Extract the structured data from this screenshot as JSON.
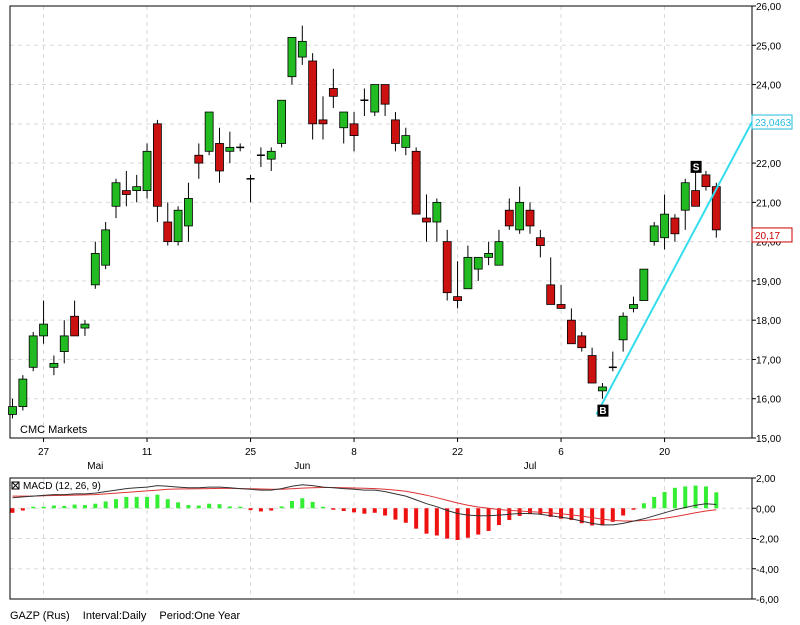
{
  "chart_data": [
    {
      "type": "candlestick",
      "watermark": "CMC Markets",
      "ylim": [
        15,
        26
      ],
      "y_ticks": [
        "15,00",
        "16,00",
        "17,00",
        "18,00",
        "19,00",
        "20,00",
        "21,00",
        "22,00",
        "23,00",
        "24,00",
        "25,00",
        "26,00"
      ],
      "x_ticks": [
        {
          "label": "27",
          "i": 3
        },
        {
          "label": "11",
          "i": 13
        },
        {
          "label": "25",
          "i": 23
        },
        {
          "label": "8",
          "i": 33
        },
        {
          "label": "22",
          "i": 43
        },
        {
          "label": "6",
          "i": 53
        },
        {
          "label": "20",
          "i": 63
        }
      ],
      "month_labels": [
        {
          "label": "Mai",
          "i": 8
        },
        {
          "label": "Jun",
          "i": 28
        },
        {
          "label": "Jul",
          "i": 50
        }
      ],
      "candles": [
        [
          15.6,
          16.0,
          15.5,
          15.8
        ],
        [
          15.8,
          16.6,
          15.7,
          16.5
        ],
        [
          16.8,
          17.7,
          16.7,
          17.6
        ],
        [
          17.6,
          18.5,
          17.4,
          17.9
        ],
        [
          16.8,
          17.1,
          16.6,
          16.9
        ],
        [
          17.2,
          18.0,
          16.9,
          17.6
        ],
        [
          18.1,
          18.5,
          17.6,
          17.6
        ],
        [
          17.8,
          18.0,
          17.6,
          17.9
        ],
        [
          18.9,
          20.0,
          18.8,
          19.7
        ],
        [
          19.4,
          20.5,
          19.3,
          20.3
        ],
        [
          20.9,
          21.6,
          20.6,
          21.5
        ],
        [
          21.3,
          21.8,
          20.9,
          21.2
        ],
        [
          21.3,
          21.7,
          21.0,
          21.4
        ],
        [
          21.3,
          22.5,
          21.1,
          22.3
        ],
        [
          23.0,
          23.1,
          20.5,
          20.9
        ],
        [
          20.5,
          21.0,
          19.9,
          20.0
        ],
        [
          20.0,
          20.9,
          19.9,
          20.8
        ],
        [
          20.4,
          21.5,
          20.0,
          21.1
        ],
        [
          22.2,
          22.5,
          21.6,
          22.0
        ],
        [
          22.3,
          23.2,
          22.2,
          23.3
        ],
        [
          22.5,
          22.9,
          21.5,
          21.8
        ],
        [
          22.3,
          22.8,
          22.0,
          22.4
        ],
        [
          22.4,
          22.5,
          22.3,
          22.4
        ],
        [
          21.6,
          21.7,
          21.0,
          21.6
        ],
        [
          22.2,
          22.4,
          21.9,
          22.2
        ],
        [
          22.1,
          22.4,
          21.8,
          22.3
        ],
        [
          22.5,
          23.6,
          22.4,
          23.6
        ],
        [
          24.2,
          25.2,
          24.0,
          25.2
        ],
        [
          24.7,
          25.5,
          24.5,
          25.1
        ],
        [
          24.6,
          24.8,
          22.6,
          23.0
        ],
        [
          23.1,
          23.7,
          22.6,
          23.0
        ],
        [
          23.9,
          24.4,
          23.4,
          23.7
        ],
        [
          22.9,
          23.3,
          22.5,
          23.3
        ],
        [
          23.0,
          23.3,
          22.3,
          22.7
        ],
        [
          23.6,
          23.9,
          23.2,
          23.6
        ],
        [
          23.3,
          24.0,
          23.2,
          24.0
        ],
        [
          24.0,
          24.0,
          23.2,
          23.5
        ],
        [
          23.1,
          23.3,
          22.3,
          22.5
        ],
        [
          22.4,
          22.9,
          22.2,
          22.7
        ],
        [
          22.3,
          22.4,
          20.7,
          20.7
        ],
        [
          20.6,
          21.2,
          20.0,
          20.5
        ],
        [
          20.5,
          21.1,
          20.0,
          21.0
        ],
        [
          20.0,
          20.3,
          18.5,
          18.7
        ],
        [
          18.6,
          19.5,
          18.3,
          18.5
        ],
        [
          18.8,
          19.9,
          18.8,
          19.6
        ],
        [
          19.3,
          19.6,
          19.0,
          19.6
        ],
        [
          19.6,
          20.0,
          19.4,
          19.7
        ],
        [
          19.4,
          20.3,
          19.4,
          20.0
        ],
        [
          20.8,
          21.1,
          20.3,
          20.4
        ],
        [
          20.3,
          21.4,
          20.2,
          21.0
        ],
        [
          20.8,
          21.0,
          20.2,
          20.4
        ],
        [
          20.1,
          20.3,
          19.6,
          19.9
        ],
        [
          18.9,
          19.6,
          18.5,
          18.4
        ],
        [
          18.4,
          18.9,
          18.3,
          18.3
        ],
        [
          18.0,
          18.3,
          17.4,
          17.4
        ],
        [
          17.6,
          17.7,
          17.2,
          17.3
        ],
        [
          17.1,
          17.3,
          16.4,
          16.4
        ],
        [
          16.2,
          16.4,
          16.0,
          16.3
        ],
        [
          16.8,
          17.2,
          16.7,
          16.8
        ],
        [
          17.5,
          18.2,
          17.2,
          18.1
        ],
        [
          18.3,
          18.6,
          18.2,
          18.4
        ],
        [
          18.5,
          19.3,
          18.5,
          19.3
        ],
        [
          20.0,
          20.5,
          19.9,
          20.4
        ],
        [
          20.1,
          21.2,
          19.8,
          20.7
        ],
        [
          20.6,
          20.7,
          20.0,
          20.2
        ],
        [
          20.8,
          21.6,
          20.3,
          21.5
        ],
        [
          21.3,
          21.8,
          20.9,
          20.9
        ],
        [
          21.7,
          21.8,
          21.3,
          21.4
        ],
        [
          21.4,
          21.5,
          20.1,
          20.3
        ]
      ],
      "markers": [
        {
          "label": "B",
          "i": 57,
          "y": 15.9,
          "position": "below"
        },
        {
          "label": "S",
          "i": 66,
          "y": 21.7,
          "position": "above"
        }
      ],
      "trendline": {
        "from": [
          57,
          15.6
        ],
        "to": [
          69,
          23.0463
        ],
        "color": "#33ddee"
      },
      "price_labels": [
        {
          "text": "23,0463",
          "y": 23.0463,
          "color": "#22bbdd"
        },
        {
          "text": "20,17",
          "y": 20.17,
          "color": "#cc0000"
        }
      ],
      "up_color": "#22bb22",
      "down_color": "#cc1111"
    },
    {
      "type": "histogram_lines",
      "legend": "MACD (12, 26, 9)",
      "ylim": [
        -6,
        2
      ],
      "y_ticks": [
        "2,00",
        "0,00",
        "-2,00",
        "-4,00",
        "-6,00"
      ],
      "macd": [
        0.7,
        0.75,
        0.8,
        0.85,
        0.9,
        0.9,
        0.95,
        0.95,
        1.0,
        1.1,
        1.2,
        1.3,
        1.35,
        1.4,
        1.5,
        1.45,
        1.4,
        1.35,
        1.35,
        1.4,
        1.4,
        1.35,
        1.3,
        1.25,
        1.2,
        1.2,
        1.3,
        1.45,
        1.55,
        1.5,
        1.4,
        1.35,
        1.3,
        1.25,
        1.2,
        1.2,
        1.1,
        0.95,
        0.8,
        0.55,
        0.3,
        0.1,
        -0.15,
        -0.35,
        -0.45,
        -0.5,
        -0.5,
        -0.45,
        -0.4,
        -0.35,
        -0.35,
        -0.4,
        -0.5,
        -0.6,
        -0.7,
        -0.85,
        -1.0,
        -1.1,
        -1.1,
        -1.0,
        -0.85,
        -0.7,
        -0.5,
        -0.3,
        -0.1,
        0.05,
        0.2,
        0.3,
        0.25
      ],
      "signal": [
        0.8,
        0.8,
        0.8,
        0.82,
        0.84,
        0.85,
        0.87,
        0.88,
        0.9,
        0.95,
        1.0,
        1.05,
        1.1,
        1.15,
        1.2,
        1.25,
        1.27,
        1.28,
        1.29,
        1.3,
        1.31,
        1.31,
        1.3,
        1.29,
        1.27,
        1.25,
        1.26,
        1.29,
        1.33,
        1.36,
        1.37,
        1.37,
        1.36,
        1.34,
        1.32,
        1.3,
        1.26,
        1.2,
        1.12,
        1.0,
        0.86,
        0.7,
        0.52,
        0.35,
        0.2,
        0.08,
        0.0,
        -0.08,
        -0.14,
        -0.18,
        -0.22,
        -0.26,
        -0.31,
        -0.37,
        -0.44,
        -0.52,
        -0.62,
        -0.72,
        -0.8,
        -0.84,
        -0.84,
        -0.81,
        -0.75,
        -0.66,
        -0.55,
        -0.43,
        -0.3,
        -0.18,
        -0.1
      ],
      "macd_color": "#333333",
      "signal_color": "#dd3333",
      "hist_pos_color": "#33ee33",
      "hist_neg_color": "#ee1111"
    }
  ],
  "footer": {
    "symbol": "GAZP (Rus)",
    "interval": "Interval:Daily",
    "period": "Period:One Year"
  }
}
